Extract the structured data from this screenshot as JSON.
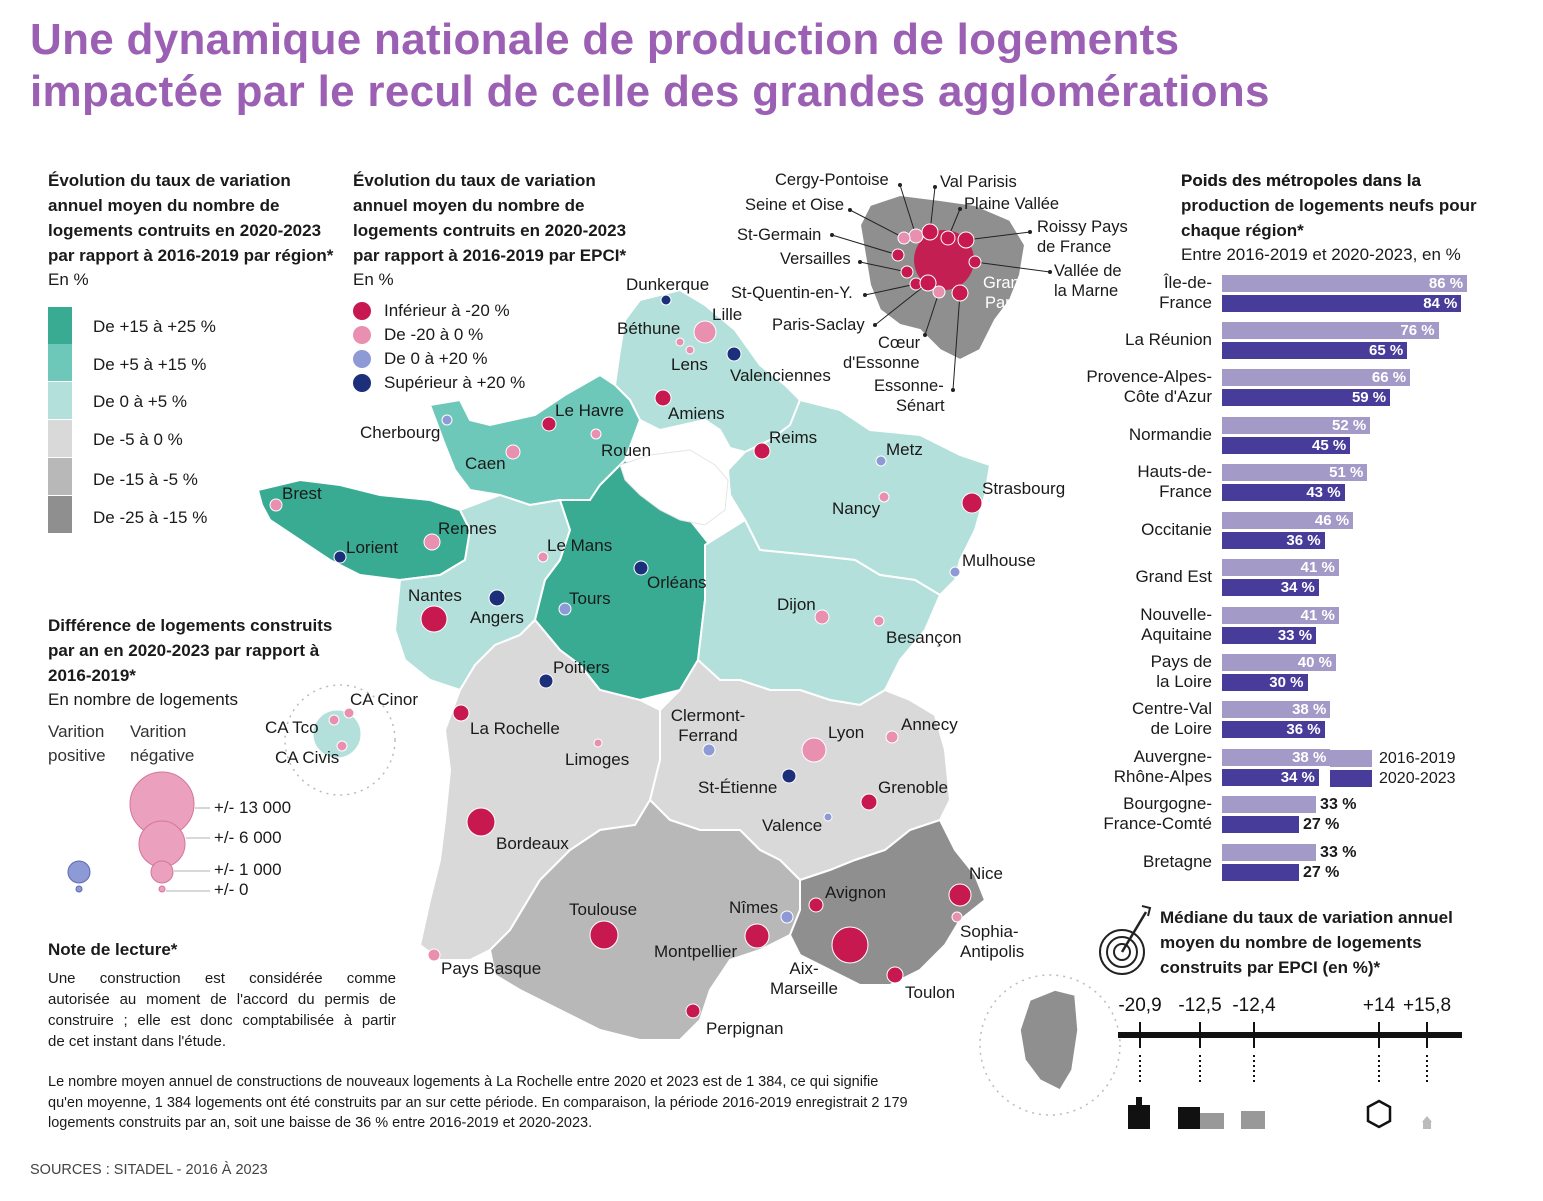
{
  "title": {
    "line1": "Une dynamique nationale de production de logements",
    "line2": "impactée par le recul de celle des grandes agglomérations"
  },
  "legend_region": {
    "title": [
      "Évolution du taux de variation",
      "annuel moyen du nombre de",
      "logements contruits en 2020-2023",
      "par rapport à 2016-2019 par région*"
    ],
    "unit": "En %",
    "classes": [
      {
        "label": "De +15 à +25 %",
        "color": "#3aab93"
      },
      {
        "label": "De +5 à +15 %",
        "color": "#6ec8b9"
      },
      {
        "label": "De 0 à +5 %",
        "color": "#b3e0db"
      },
      {
        "label": "De -5 à 0 %",
        "color": "#d9d9d9"
      },
      {
        "label": "De -15 à -5 %",
        "color": "#b8b8b8"
      },
      {
        "label": "De -25 à -15 %",
        "color": "#8f8f8f"
      }
    ]
  },
  "legend_epci": {
    "title": [
      "Évolution du taux de variation",
      "annuel moyen du nombre de",
      "logements contruits en 2020-2023",
      "par rapport à 2016-2019 par EPCI*"
    ],
    "unit": "En %",
    "classes": [
      {
        "label": "Inférieur à -20 %",
        "color": "#c7194f"
      },
      {
        "label": "De -20 à 0 %",
        "color": "#e98fb0"
      },
      {
        "label": "De 0 à +20 %",
        "color": "#8d9ad6"
      },
      {
        "label": "Supérieur à +20 %",
        "color": "#1c2f7a"
      }
    ]
  },
  "legend_diff": {
    "title": [
      "Différence de logements construits",
      "par an en 2020-2023 par rapport à",
      "2016-2019*"
    ],
    "unit": "En nombre de logements",
    "positive": [
      "Varition",
      "positive"
    ],
    "negative": [
      "Varition",
      "négative"
    ],
    "sizes": [
      "+/- 13 000",
      "+/- 6 000",
      "+/- 1 000",
      "+/- 0"
    ]
  },
  "note": {
    "title": "Note de lecture*",
    "lines": [
      "Une construction est considérée comme",
      "autorisée au moment de l'accord du permis de",
      "construire ; elle est donc comptabilisée à partir",
      "de cet instant dans l'étude."
    ],
    "bottom": [
      "Le nombre moyen annuel de constructions de nouveaux logements à La Rochelle entre 2020 et 2023 est de 1 384, ce qui signifie",
      "qu'en moyenne, 1 384 logements ont été construits par an sur cette période. En comparaison, la période 2016-2019 enregistrait 2 179",
      "logements construits par an, soit une baisse de 36 % entre 2016-2019 et 2020-2023."
    ]
  },
  "sources": "SOURCES : SITADEL - 2016 À 2023",
  "cities": [
    {
      "name": "Dunkerque",
      "color": "#1c2f7a"
    },
    {
      "name": "Lille",
      "color": "#e98fb0"
    },
    {
      "name": "Béthune",
      "color": "#e98fb0"
    },
    {
      "name": "Lens",
      "color": "#e98fb0"
    },
    {
      "name": "Valenciennes",
      "color": "#1c2f7a"
    },
    {
      "name": "Amiens",
      "color": "#c7194f"
    },
    {
      "name": "Le Havre",
      "color": "#c7194f"
    },
    {
      "name": "Rouen",
      "color": "#e98fb0"
    },
    {
      "name": "Cherbourg",
      "color": "#8d9ad6"
    },
    {
      "name": "Caen",
      "color": "#e98fb0"
    },
    {
      "name": "Reims",
      "color": "#c7194f"
    },
    {
      "name": "Metz",
      "color": "#8d9ad6"
    },
    {
      "name": "Strasbourg",
      "color": "#c7194f"
    },
    {
      "name": "Nancy",
      "color": "#e98fb0"
    },
    {
      "name": "Brest",
      "color": "#e98fb0"
    },
    {
      "name": "Rennes",
      "color": "#e98fb0"
    },
    {
      "name": "Lorient",
      "color": "#1c2f7a"
    },
    {
      "name": "Le Mans",
      "color": "#e98fb0"
    },
    {
      "name": "Orléans",
      "color": "#1c2f7a"
    },
    {
      "name": "Tours",
      "color": "#8d9ad6"
    },
    {
      "name": "Nantes",
      "color": "#c7194f"
    },
    {
      "name": "Angers",
      "color": "#1c2f7a"
    },
    {
      "name": "Mulhouse",
      "color": "#8d9ad6"
    },
    {
      "name": "Dijon",
      "color": "#e98fb0"
    },
    {
      "name": "Besançon",
      "color": "#e98fb0"
    },
    {
      "name": "Poitiers",
      "color": "#1c2f7a"
    },
    {
      "name": "La Rochelle",
      "color": "#c7194f"
    },
    {
      "name": "Limoges",
      "color": "#e98fb0"
    },
    {
      "name": "Clermont-Ferrand",
      "color": "#8d9ad6"
    },
    {
      "name": "Lyon",
      "color": "#e98fb0"
    },
    {
      "name": "Annecy",
      "color": "#e98fb0"
    },
    {
      "name": "St-Étienne",
      "color": "#1c2f7a"
    },
    {
      "name": "Grenoble",
      "color": "#c7194f"
    },
    {
      "name": "Valence",
      "color": "#8d9ad6"
    },
    {
      "name": "Bordeaux",
      "color": "#c7194f"
    },
    {
      "name": "Avignon",
      "color": "#c7194f"
    },
    {
      "name": "Nice",
      "color": "#c7194f"
    },
    {
      "name": "Sophia-Antipolis",
      "color": "#e98fb0"
    },
    {
      "name": "Nîmes",
      "color": "#8d9ad6"
    },
    {
      "name": "Toulouse",
      "color": "#c7194f"
    },
    {
      "name": "Montpellier",
      "color": "#c7194f"
    },
    {
      "name": "Aix-Marseille",
      "color": "#c7194f"
    },
    {
      "name": "Toulon",
      "color": "#c7194f"
    },
    {
      "name": "Pays Basque",
      "color": "#e98fb0"
    },
    {
      "name": "Perpignan",
      "color": "#c7194f"
    },
    {
      "name": "CA Cinor",
      "color": "#e98fb0"
    },
    {
      "name": "CA Tco",
      "color": "#e98fb0"
    },
    {
      "name": "CA Civis",
      "color": "#e98fb0"
    }
  ],
  "idf_labels": [
    "Cergy-Pontoise",
    "Val Parisis",
    "Seine et Oise",
    "Plaine Vallée",
    "St-Germain",
    "Roissy Pays de France",
    "Versailles",
    "Grand Paris",
    "Vallée de la Marne",
    "St-Quentin-en-Y.",
    "Paris-Saclay",
    "Cœur d'Essonne",
    "Essonne-Sénart"
  ],
  "chart_data": [
    {
      "type": "bar",
      "title": "Poids des métropoles dans la production de logements neufs pour chaque région*",
      "subtitle": "Entre 2016-2019 et 2020-2023, en %",
      "categories": [
        "Île-de-France",
        "La Réunion",
        "Provence-Alpes-Côte d'Azur",
        "Normandie",
        "Hauts-de-France",
        "Occitanie",
        "Grand Est",
        "Nouvelle-Aquitaine",
        "Pays de la Loire",
        "Centre-Val de Loire",
        "Auvergne-Rhône-Alpes",
        "Bourgogne-France-Comté",
        "Bretagne"
      ],
      "series": [
        {
          "name": "2016-2019",
          "color": "#a49ac8",
          "values": [
            86,
            76,
            66,
            52,
            51,
            46,
            41,
            41,
            40,
            38,
            38,
            33,
            33
          ]
        },
        {
          "name": "2020-2023",
          "color": "#473c9a",
          "values": [
            84,
            65,
            59,
            45,
            43,
            36,
            34,
            33,
            30,
            36,
            34,
            27,
            27
          ]
        }
      ],
      "value_labels": [
        [
          "86 %",
          "84 %"
        ],
        [
          "76 %",
          "65 %"
        ],
        [
          "66 %",
          "59 %"
        ],
        [
          "52 %",
          "45 %"
        ],
        [
          "51 %",
          "43 %"
        ],
        [
          "46 %",
          "36 %"
        ],
        [
          "41 %",
          "34 %"
        ],
        [
          "41 %",
          "33 %"
        ],
        [
          "40 %",
          "30 %"
        ],
        [
          "38 %",
          "36 %"
        ],
        [
          "38 %",
          "34 %"
        ],
        [
          "33 %",
          "27 %"
        ],
        [
          "33 %",
          "27 %"
        ]
      ],
      "category_lines": [
        [
          "Île-de-",
          "France"
        ],
        [
          "La Réunion"
        ],
        [
          "Provence-Alpes-",
          "Côte d'Azur"
        ],
        [
          "Normandie"
        ],
        [
          "Hauts-de-",
          "France"
        ],
        [
          "Occitanie"
        ],
        [
          "Grand Est"
        ],
        [
          "Nouvelle-",
          "Aquitaine"
        ],
        [
          "Pays de",
          "la Loire"
        ],
        [
          "Centre-Val",
          "de Loire"
        ],
        [
          "Auvergne-",
          "Rhône-Alpes"
        ],
        [
          "Bourgogne-",
          "France-Comté"
        ],
        [
          "Bretagne"
        ]
      ],
      "legend": [
        "2016-2019",
        "2020-2023"
      ]
    },
    {
      "type": "scatter",
      "title": "Médiane du taux de variation annuel moyen du nombre de logements construits par EPCI (en %)*",
      "x": [
        -20.9,
        -12.5,
        -12.4,
        14,
        15.8
      ],
      "tick_labels": [
        "-20,9",
        "-12,5",
        "-12,4",
        "+14",
        "+15,8"
      ]
    }
  ]
}
